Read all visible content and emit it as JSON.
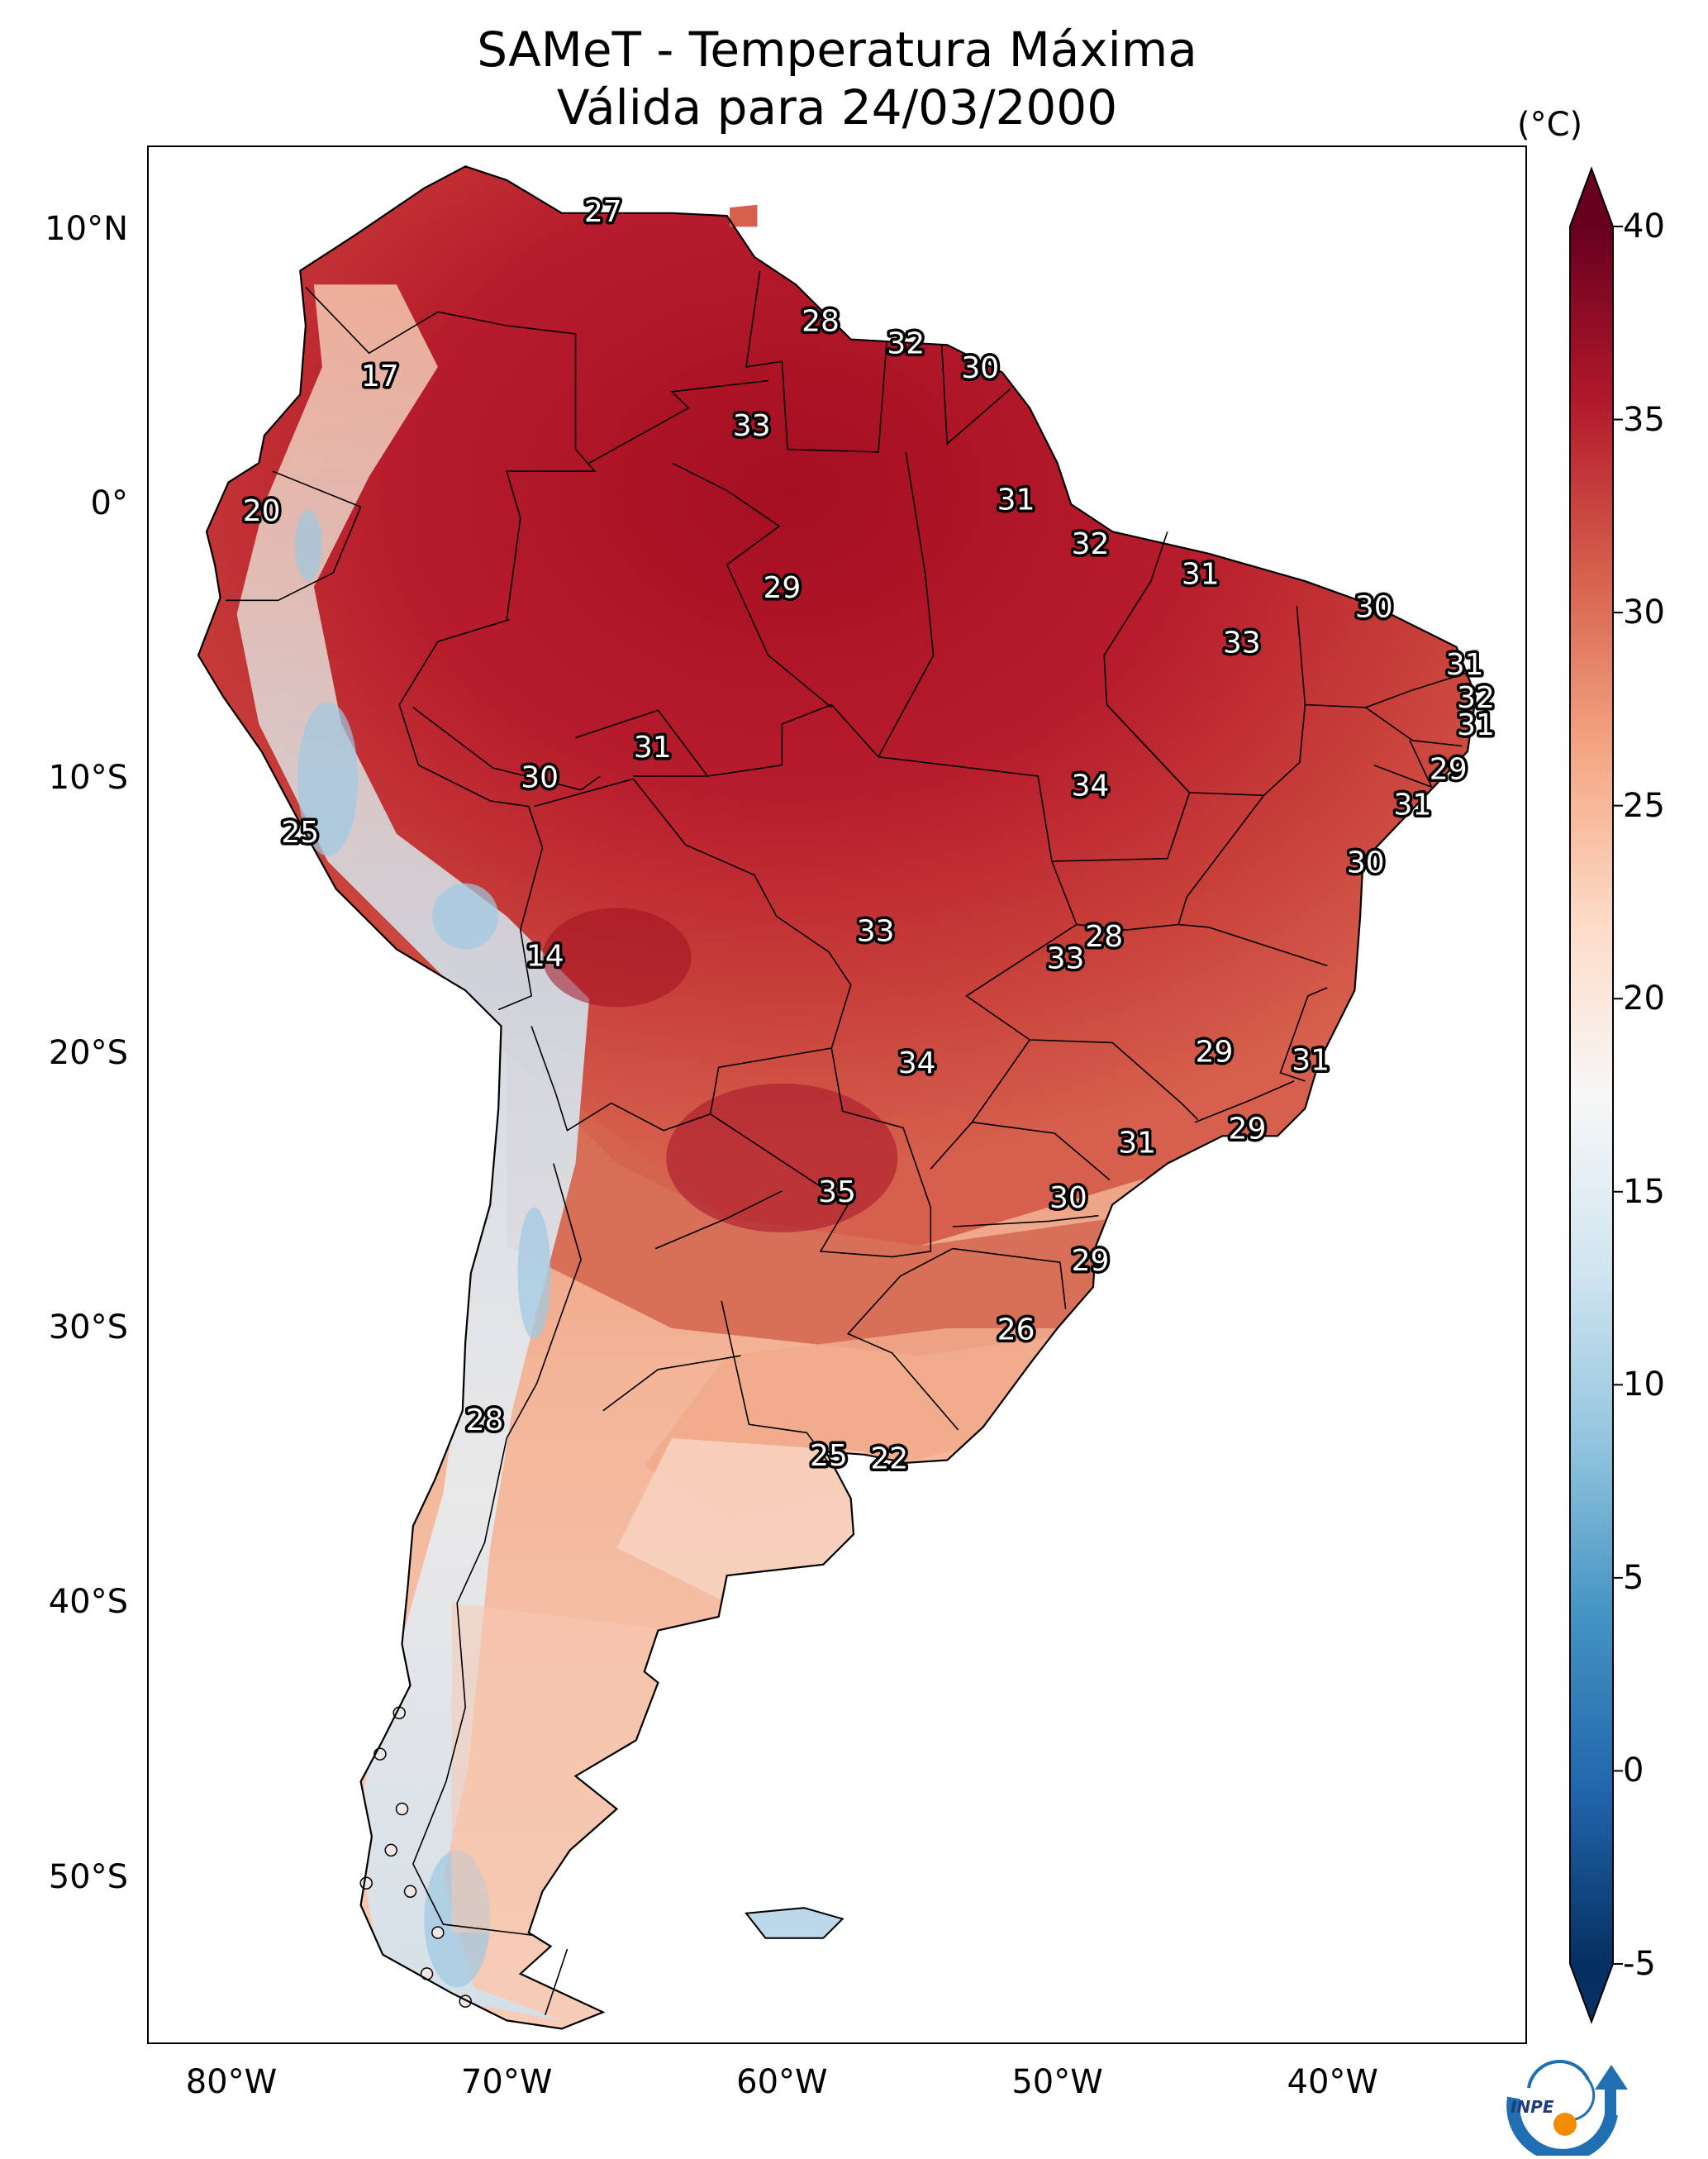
{
  "title": {
    "line1": "SAMeT - Temperatura Máxima",
    "line2": "Válida para 24/03/2000"
  },
  "axes": {
    "lat_ticks": [
      {
        "label": "10°N",
        "value": 10
      },
      {
        "label": "0°",
        "value": 0
      },
      {
        "label": "10°S",
        "value": -10
      },
      {
        "label": "20°S",
        "value": -20
      },
      {
        "label": "30°S",
        "value": -30
      },
      {
        "label": "40°S",
        "value": -40
      },
      {
        "label": "50°S",
        "value": -50
      }
    ],
    "lon_ticks": [
      {
        "label": "80°W",
        "value": -80
      },
      {
        "label": "70°W",
        "value": -70
      },
      {
        "label": "60°W",
        "value": -60
      },
      {
        "label": "50°W",
        "value": -50
      },
      {
        "label": "40°W",
        "value": -40
      }
    ],
    "extent": {
      "lon_min": -83,
      "lon_max": -33,
      "lat_min": -56,
      "lat_max": 13
    }
  },
  "colorbar": {
    "unit": "(°C)",
    "ticks": [
      "40",
      "35",
      "30",
      "25",
      "20",
      "15",
      "10",
      "5",
      "0",
      "-5"
    ],
    "tick_values": [
      40,
      35,
      30,
      25,
      20,
      15,
      10,
      5,
      0,
      -5
    ],
    "range": [
      -5,
      40
    ],
    "colors": {
      "max": "#67001f",
      "hot": "#b2182b",
      "warm": "#d6604d",
      "mild": "#f4a582",
      "cool": "#fddbc7",
      "neutral": "#f7f7f7",
      "chill": "#d1e5f0",
      "cold": "#92c5de",
      "colder": "#4393c3",
      "coldest": "#2166ac",
      "min": "#053061"
    }
  },
  "station_labels": [
    {
      "text": "27",
      "lon": -66.5,
      "lat": 10.6
    },
    {
      "text": "17",
      "lon": -74.6,
      "lat": 4.6
    },
    {
      "text": "28",
      "lon": -58.6,
      "lat": 6.6
    },
    {
      "text": "32",
      "lon": -55.5,
      "lat": 5.8
    },
    {
      "text": "30",
      "lon": -52.8,
      "lat": 4.9
    },
    {
      "text": "33",
      "lon": -61.1,
      "lat": 2.8
    },
    {
      "text": "20",
      "lon": -78.9,
      "lat": -0.3
    },
    {
      "text": "31",
      "lon": -51.5,
      "lat": 0.1
    },
    {
      "text": "32",
      "lon": -48.8,
      "lat": -1.5
    },
    {
      "text": "31",
      "lon": -44.8,
      "lat": -2.6
    },
    {
      "text": "29",
      "lon": -60.0,
      "lat": -3.1
    },
    {
      "text": "30",
      "lon": -38.5,
      "lat": -3.8
    },
    {
      "text": "33",
      "lon": -43.3,
      "lat": -5.1
    },
    {
      "text": "31",
      "lon": -35.2,
      "lat": -5.9
    },
    {
      "text": "32",
      "lon": -34.8,
      "lat": -7.1
    },
    {
      "text": "31",
      "lon": -34.8,
      "lat": -8.1
    },
    {
      "text": "31",
      "lon": -64.7,
      "lat": -8.9
    },
    {
      "text": "29",
      "lon": -35.8,
      "lat": -9.7
    },
    {
      "text": "30",
      "lon": -68.8,
      "lat": -10.0
    },
    {
      "text": "34",
      "lon": -48.8,
      "lat": -10.3
    },
    {
      "text": "31",
      "lon": -37.1,
      "lat": -11.0
    },
    {
      "text": "25",
      "lon": -77.5,
      "lat": -12.0
    },
    {
      "text": "30",
      "lon": -38.8,
      "lat": -13.1
    },
    {
      "text": "33",
      "lon": -56.6,
      "lat": -15.6
    },
    {
      "text": "28",
      "lon": -48.3,
      "lat": -15.8
    },
    {
      "text": "14",
      "lon": -68.6,
      "lat": -16.5
    },
    {
      "text": "33",
      "lon": -49.7,
      "lat": -16.6
    },
    {
      "text": "29",
      "lon": -44.3,
      "lat": -20.0
    },
    {
      "text": "31",
      "lon": -40.8,
      "lat": -20.3
    },
    {
      "text": "34",
      "lon": -55.1,
      "lat": -20.4
    },
    {
      "text": "29",
      "lon": -43.1,
      "lat": -22.8
    },
    {
      "text": "31",
      "lon": -47.1,
      "lat": -23.3
    },
    {
      "text": "35",
      "lon": -58.0,
      "lat": -25.1
    },
    {
      "text": "30",
      "lon": -49.6,
      "lat": -25.3
    },
    {
      "text": "29",
      "lon": -48.8,
      "lat": -27.6
    },
    {
      "text": "26",
      "lon": -51.5,
      "lat": -30.1
    },
    {
      "text": "28",
      "lon": -70.8,
      "lat": -33.4
    },
    {
      "text": "25",
      "lon": -58.3,
      "lat": -34.7
    },
    {
      "text": "22",
      "lon": -56.1,
      "lat": -34.8
    }
  ],
  "logo": {
    "text": "INPE"
  }
}
